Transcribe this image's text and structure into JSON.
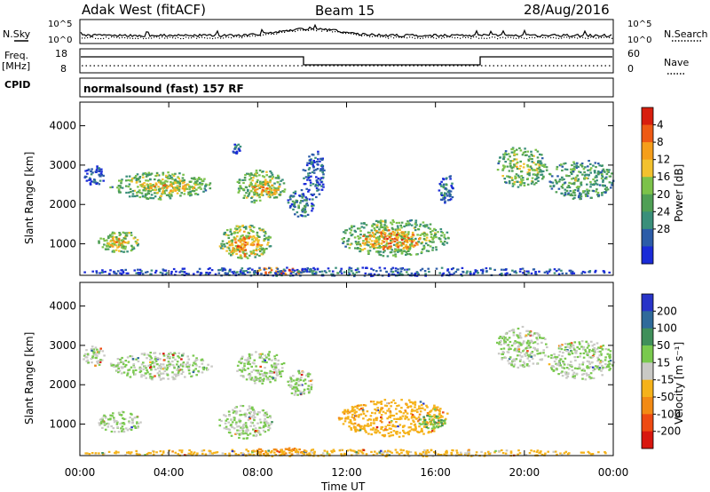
{
  "header": {
    "station": "Adak West (fitACF)",
    "beam": "Beam 15",
    "date": "28/Aug/2016"
  },
  "noise_panel": {
    "left_label": "N.Sky",
    "right_label": "N.Search",
    "left_ticks": [
      "10^5",
      "10^0"
    ],
    "right_ticks": [
      "10^5",
      "10^0"
    ]
  },
  "freq_panel": {
    "left_label_1": "Freq.",
    "left_label_2": "[MHz]",
    "right_label": "Nave",
    "left_ticks": [
      "18",
      "8"
    ],
    "right_ticks": [
      "60",
      "0"
    ]
  },
  "cpid": {
    "label": "CPID",
    "program": "normalsound (fast) 157 RF"
  },
  "chart_data": [
    {
      "type": "heatmap",
      "name": "power",
      "ylabel": "Slant Range [km]",
      "y_ticks": [
        "1000",
        "2000",
        "3000",
        "4000"
      ],
      "ylim": [
        200,
        4600
      ],
      "xlim": [
        0,
        24
      ],
      "colorbar_label": "Power [dB]",
      "colorbar_ticks": [
        "4",
        "8",
        "12",
        "16",
        "20",
        "24",
        "28"
      ],
      "colorbar_range": [
        0,
        32
      ],
      "colors": [
        "#1a2bd8",
        "#2c5ca8",
        "#3a8f7a",
        "#4f9f55",
        "#7cc24a",
        "#f2c12e",
        "#f59e1b",
        "#ee5a14",
        "#d81e0e"
      ],
      "patches": [
        {
          "t0": 0.1,
          "t1": 1.1,
          "r0": 2500,
          "r1": 3000,
          "level": 0.22
        },
        {
          "t0": 1.3,
          "t1": 5.9,
          "r0": 2150,
          "r1": 2850,
          "level": 0.55
        },
        {
          "t0": 2.6,
          "t1": 5.4,
          "r0": 2300,
          "r1": 2650,
          "level": 0.72
        },
        {
          "t0": 0.8,
          "t1": 2.7,
          "r0": 800,
          "r1": 1350,
          "level": 0.6
        },
        {
          "t0": 1.0,
          "t1": 2.2,
          "r0": 900,
          "r1": 1200,
          "level": 0.72
        },
        {
          "t0": 7.0,
          "t1": 9.2,
          "r0": 2050,
          "r1": 2900,
          "level": 0.58
        },
        {
          "t0": 7.6,
          "t1": 9.0,
          "r0": 2250,
          "r1": 2600,
          "level": 0.75
        },
        {
          "t0": 6.2,
          "t1": 8.6,
          "r0": 650,
          "r1": 1500,
          "level": 0.62
        },
        {
          "t0": 6.6,
          "t1": 8.2,
          "r0": 700,
          "r1": 1250,
          "level": 0.8
        },
        {
          "t0": 9.3,
          "t1": 10.5,
          "r0": 1700,
          "r1": 2400,
          "level": 0.35
        },
        {
          "t0": 10.0,
          "t1": 11.0,
          "r0": 2200,
          "r1": 3400,
          "level": 0.25
        },
        {
          "t0": 11.6,
          "t1": 16.6,
          "r0": 700,
          "r1": 1650,
          "level": 0.55
        },
        {
          "t0": 12.6,
          "t1": 15.3,
          "r0": 850,
          "r1": 1400,
          "level": 0.82
        },
        {
          "t0": 18.7,
          "t1": 21.0,
          "r0": 2450,
          "r1": 3500,
          "level": 0.55
        },
        {
          "t0": 21.0,
          "t1": 24.0,
          "r0": 2150,
          "r1": 3150,
          "level": 0.45
        },
        {
          "t0": 16.1,
          "t1": 16.8,
          "r0": 2000,
          "r1": 2800,
          "level": 0.3
        },
        {
          "t0": 6.8,
          "t1": 7.2,
          "r0": 3300,
          "r1": 3600,
          "level": 0.3
        },
        {
          "t0": 7.7,
          "t1": 10.2,
          "r0": 250,
          "r1": 420,
          "level": 0.92
        },
        {
          "t0": 0.0,
          "t1": 24.0,
          "r0": 200,
          "r1": 420,
          "level": 0.25
        }
      ]
    },
    {
      "type": "heatmap",
      "name": "velocity",
      "ylabel": "Slant Range [km]",
      "y_ticks": [
        "1000",
        "2000",
        "3000",
        "4000"
      ],
      "ylim": [
        200,
        4600
      ],
      "xlim": [
        0,
        24
      ],
      "colorbar_label": "Velocity [m s⁻¹]",
      "colorbar_ticks": [
        "200",
        "100",
        "50",
        "15",
        "-15",
        "-50",
        "-100",
        "-200"
      ],
      "colors": [
        "#2834c8",
        "#2f6a9a",
        "#3f8f5a",
        "#79c94e",
        "#c9c9c5",
        "#f5b21a",
        "#f28a14",
        "#ee4a12",
        "#d8160e"
      ],
      "patches": [
        {
          "t0": 0.1,
          "t1": 1.1,
          "r0": 2500,
          "r1": 3000,
          "level": 0.45
        },
        {
          "t0": 1.3,
          "t1": 5.9,
          "r0": 2150,
          "r1": 2850,
          "level": 0.45
        },
        {
          "t0": 0.8,
          "t1": 2.7,
          "r0": 800,
          "r1": 1350,
          "level": 0.45
        },
        {
          "t0": 7.0,
          "t1": 9.2,
          "r0": 2050,
          "r1": 2900,
          "level": 0.45
        },
        {
          "t0": 6.2,
          "t1": 8.6,
          "r0": 650,
          "r1": 1500,
          "level": 0.45
        },
        {
          "t0": 9.3,
          "t1": 10.5,
          "r0": 1700,
          "r1": 2400,
          "level": 0.45
        },
        {
          "t0": 11.6,
          "t1": 16.6,
          "r0": 700,
          "r1": 1650,
          "level": 0.62
        },
        {
          "t0": 15.2,
          "t1": 16.4,
          "r0": 900,
          "r1": 1250,
          "level": 0.35
        },
        {
          "t0": 18.7,
          "t1": 21.0,
          "r0": 2450,
          "r1": 3500,
          "level": 0.45
        },
        {
          "t0": 21.0,
          "t1": 24.0,
          "r0": 2150,
          "r1": 3150,
          "level": 0.45
        },
        {
          "t0": 7.7,
          "t1": 10.2,
          "r0": 250,
          "r1": 420,
          "level": 0.72
        },
        {
          "t0": 0.0,
          "t1": 24.0,
          "r0": 200,
          "r1": 380,
          "level": 0.6
        }
      ]
    }
  ],
  "x_axis": {
    "label": "Time UT",
    "ticks": [
      "00:00",
      "04:00",
      "08:00",
      "12:00",
      "16:00",
      "20:00",
      "00:00"
    ]
  }
}
